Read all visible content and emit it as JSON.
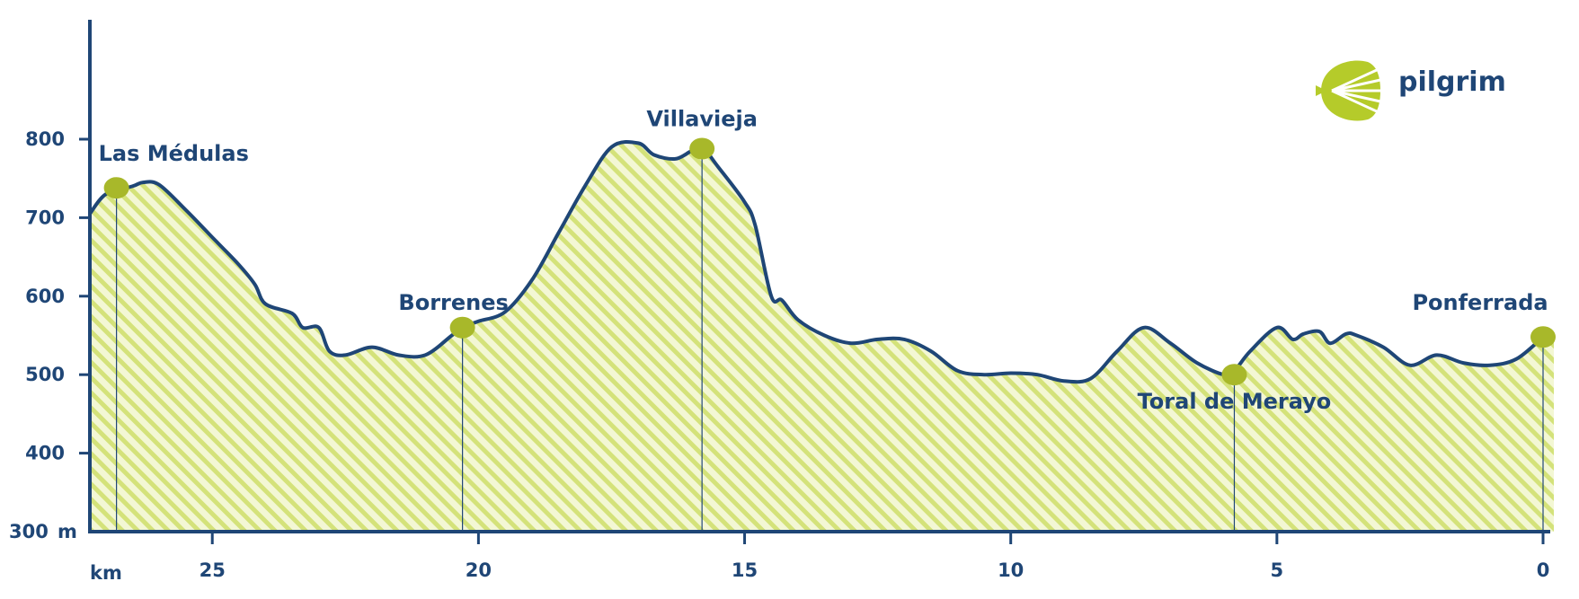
{
  "brand": {
    "name": "pilgrim",
    "logo_icon": "scallop-shell-icon",
    "logo_color": "#b5cb2a"
  },
  "colors": {
    "line": "#1f4676",
    "fill_stripe": "#d4e27a",
    "fill_bg": "#f3f7d4",
    "marker": "#a8b82a"
  },
  "chart_data": {
    "type": "area",
    "title": "",
    "x_unit": "km",
    "y_unit": "m",
    "xlim": [
      27.3,
      0
    ],
    "ylim": [
      300,
      950
    ],
    "x_ticks": [
      25,
      20,
      15,
      10,
      5,
      0
    ],
    "x_tick_labels": [
      "25",
      "20",
      "15",
      "10",
      "5",
      "0"
    ],
    "y_ticks": [
      300,
      400,
      500,
      600,
      700,
      800
    ],
    "y_tick_labels": [
      "300",
      "400",
      "500",
      "600",
      "700",
      "800"
    ],
    "grid": false,
    "legend": "none",
    "series": [
      {
        "x": [
          27.3,
          27.0,
          26.5,
          26.3,
          26.0,
          25.5,
          25.0,
          24.5,
          24.2,
          24.0,
          23.5,
          23.3,
          23.0,
          22.8,
          22.5,
          22.0,
          21.5,
          21.0,
          20.5,
          20.3,
          20.0,
          19.5,
          19.0,
          18.5,
          18.0,
          17.5,
          17.0,
          16.7,
          16.3,
          16.0,
          15.8,
          15.5,
          15.0,
          14.8,
          14.5,
          14.3,
          14.0,
          13.5,
          13.0,
          12.5,
          12.0,
          11.5,
          11.0,
          10.5,
          10.0,
          9.5,
          9.0,
          8.5,
          8.0,
          7.5,
          7.0,
          6.5,
          6.0,
          5.8,
          5.5,
          5.0,
          4.7,
          4.5,
          4.2,
          4.0,
          3.7,
          3.5,
          3.0,
          2.5,
          2.0,
          1.5,
          1.0,
          0.5,
          0.0
        ],
        "y": [
          705,
          730,
          740,
          745,
          742,
          710,
          675,
          640,
          615,
          590,
          578,
          560,
          560,
          530,
          525,
          535,
          525,
          525,
          550,
          560,
          568,
          580,
          620,
          680,
          740,
          790,
          795,
          780,
          775,
          785,
          790,
          765,
          720,
          690,
          600,
          595,
          570,
          550,
          540,
          545,
          545,
          530,
          505,
          500,
          502,
          500,
          492,
          495,
          530,
          560,
          540,
          515,
          500,
          505,
          530,
          560,
          545,
          552,
          555,
          540,
          552,
          550,
          535,
          512,
          525,
          515,
          512,
          520,
          548
        ]
      }
    ],
    "stops": [
      {
        "name": "Las Médulas",
        "km": 26.8,
        "elevation": 738
      },
      {
        "name": "Borrenes",
        "km": 20.3,
        "elevation": 560
      },
      {
        "name": "Villavieja",
        "km": 15.8,
        "elevation": 788
      },
      {
        "name": "Toral de Merayo",
        "km": 5.8,
        "elevation": 500
      },
      {
        "name": "Ponferrada",
        "km": 0.0,
        "elevation": 548
      }
    ]
  }
}
